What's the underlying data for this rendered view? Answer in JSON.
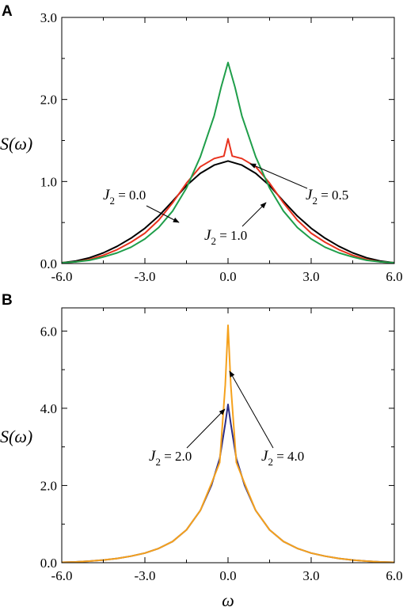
{
  "chart_data": [
    {
      "panel": "A",
      "type": "line",
      "ylabel": "S(ω)",
      "xlabel": "",
      "xlim": [
        -6.0,
        6.0
      ],
      "ylim": [
        0.0,
        3.0
      ],
      "xticks": [
        "-6.0",
        "-3.0",
        "0.0",
        "3.0",
        "6.0"
      ],
      "yticks": [
        "0.0",
        "1.0",
        "2.0",
        "3.0"
      ],
      "series": [
        {
          "name": "J2 = 0.0",
          "color": "#000000",
          "x": [
            -6,
            -5.5,
            -5,
            -4.5,
            -4,
            -3.5,
            -3,
            -2.5,
            -2,
            -1.5,
            -1,
            -0.5,
            0,
            0.5,
            1,
            1.5,
            2,
            2.5,
            3,
            3.5,
            4,
            4.5,
            5,
            5.5,
            6
          ],
          "y": [
            0.01,
            0.03,
            0.07,
            0.13,
            0.21,
            0.31,
            0.43,
            0.58,
            0.76,
            0.95,
            1.1,
            1.2,
            1.25,
            1.2,
            1.1,
            0.95,
            0.76,
            0.58,
            0.43,
            0.31,
            0.21,
            0.13,
            0.07,
            0.03,
            0.01
          ]
        },
        {
          "name": "J2 = 0.5",
          "color": "#e8321e",
          "x": [
            -6,
            -5.5,
            -5,
            -4.5,
            -4,
            -3.5,
            -3,
            -2.5,
            -2,
            -1.5,
            -1,
            -0.5,
            -0.15,
            0,
            0.15,
            0.5,
            1,
            1.5,
            2,
            2.5,
            3,
            3.5,
            4,
            4.5,
            5,
            5.5,
            6
          ],
          "y": [
            0.01,
            0.02,
            0.05,
            0.1,
            0.17,
            0.26,
            0.37,
            0.53,
            0.74,
            0.98,
            1.18,
            1.28,
            1.31,
            1.52,
            1.31,
            1.28,
            1.18,
            0.98,
            0.74,
            0.53,
            0.37,
            0.26,
            0.17,
            0.1,
            0.05,
            0.02,
            0.01
          ]
        },
        {
          "name": "J2 = 1.0",
          "color": "#1f9e4a",
          "x": [
            -6,
            -5.5,
            -5,
            -4.5,
            -4,
            -3.5,
            -3,
            -2.5,
            -2,
            -1.5,
            -1,
            -0.5,
            -0.25,
            0,
            0.25,
            0.5,
            1,
            1.5,
            2,
            2.5,
            3,
            3.5,
            4,
            4.5,
            5,
            5.5,
            6
          ],
          "y": [
            0.01,
            0.02,
            0.04,
            0.08,
            0.13,
            0.2,
            0.3,
            0.44,
            0.64,
            0.92,
            1.3,
            1.8,
            2.15,
            2.45,
            2.15,
            1.8,
            1.3,
            0.92,
            0.64,
            0.44,
            0.3,
            0.2,
            0.13,
            0.08,
            0.04,
            0.02,
            0.01
          ]
        }
      ],
      "annotations": [
        {
          "j": "J",
          "sub": "2",
          "rest": " = 0.0"
        },
        {
          "j": "J",
          "sub": "2",
          "rest": " = 0.5"
        },
        {
          "j": "J",
          "sub": "2",
          "rest": " = 1.0"
        }
      ]
    },
    {
      "panel": "B",
      "type": "line",
      "ylabel": "S(ω)",
      "xlabel": "ω",
      "xlim": [
        -6.0,
        6.0
      ],
      "ylim": [
        0.0,
        6.6
      ],
      "xticks": [
        "-6.0",
        "-3.0",
        "0.0",
        "3.0",
        "6.0"
      ],
      "yticks": [
        "0.0",
        "2.0",
        "4.0",
        "6.0"
      ],
      "series": [
        {
          "name": "J2 = 2.0",
          "color": "#2b2c86",
          "x": [
            -6,
            -5.5,
            -5,
            -4.5,
            -4,
            -3.5,
            -3,
            -2.5,
            -2,
            -1.5,
            -1,
            -0.6,
            -0.3,
            -0.1,
            0,
            0.1,
            0.3,
            0.6,
            1,
            1.5,
            2,
            2.5,
            3,
            3.5,
            4,
            4.5,
            5,
            5.5,
            6
          ],
          "y": [
            0.01,
            0.02,
            0.04,
            0.07,
            0.11,
            0.17,
            0.25,
            0.37,
            0.55,
            0.85,
            1.35,
            2.0,
            2.7,
            3.6,
            4.1,
            3.6,
            2.7,
            2.0,
            1.35,
            0.85,
            0.55,
            0.37,
            0.25,
            0.17,
            0.11,
            0.07,
            0.04,
            0.02,
            0.01
          ]
        },
        {
          "name": "J2 = 4.0",
          "color": "#f5a11c",
          "x": [
            -6,
            -5.5,
            -5,
            -4.5,
            -4,
            -3.5,
            -3,
            -2.5,
            -2,
            -1.5,
            -1,
            -0.6,
            -0.3,
            -0.1,
            0,
            0.1,
            0.3,
            0.6,
            1,
            1.5,
            2,
            2.5,
            3,
            3.5,
            4,
            4.5,
            5,
            5.5,
            6
          ],
          "y": [
            0.01,
            0.02,
            0.04,
            0.07,
            0.11,
            0.17,
            0.25,
            0.37,
            0.55,
            0.85,
            1.35,
            2.05,
            2.6,
            4.6,
            6.15,
            4.6,
            2.6,
            2.05,
            1.35,
            0.85,
            0.55,
            0.37,
            0.25,
            0.17,
            0.11,
            0.07,
            0.04,
            0.02,
            0.01
          ]
        }
      ],
      "annotations": [
        {
          "j": "J",
          "sub": "2",
          "rest": " = 2.0"
        },
        {
          "j": "J",
          "sub": "2",
          "rest": " = 4.0"
        }
      ]
    }
  ]
}
